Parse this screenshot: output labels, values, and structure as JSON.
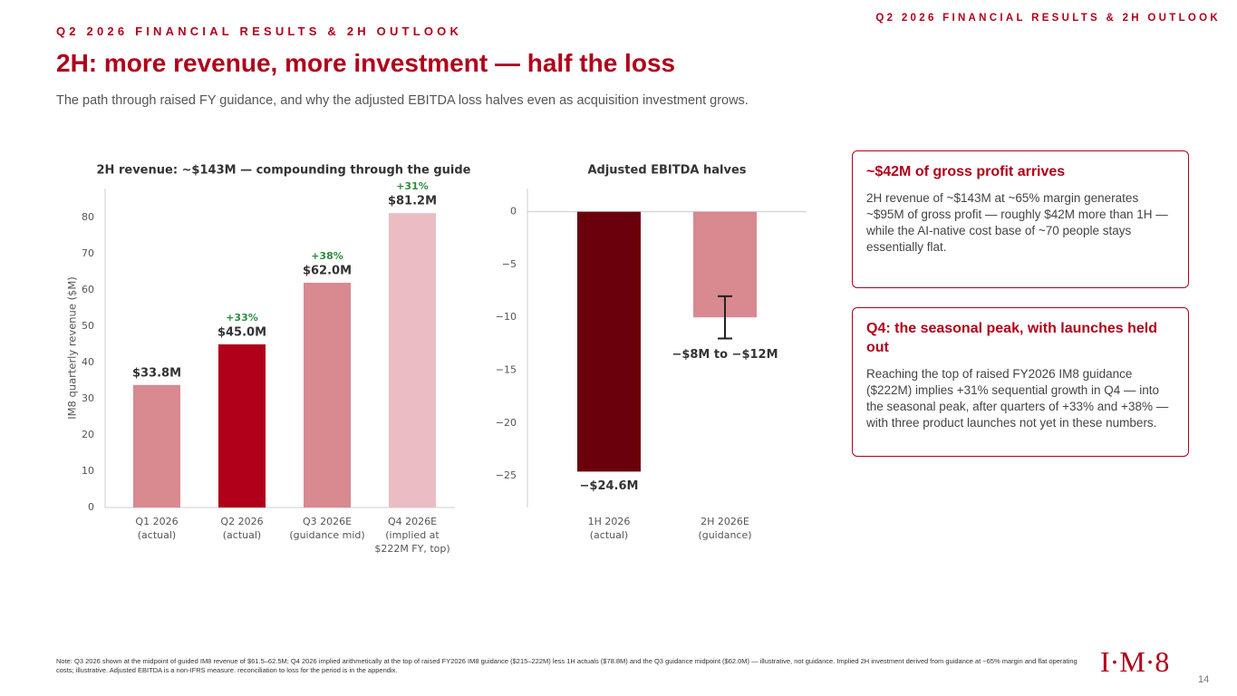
{
  "header": {
    "eyebrow": "Q2 2026 FINANCIAL RESULTS & 2H OUTLOOK",
    "title": "2H: more revenue, more investment — half the loss",
    "subtitle": "The path through raised FY guidance, and why the adjusted EBITDA loss halves even as acquisition investment grows."
  },
  "chart_data": [
    {
      "type": "bar",
      "title": "2H revenue: ~$143M — compounding through the guide",
      "y_label": "IM8 quarterly revenue ($M)",
      "categories": [
        "Q1 2026\n(actual)",
        "Q2 2026\n(actual)",
        "Q3 2026E\n(guidance mid)",
        "Q4 2026E\n(implied at\n$222M FY, top)"
      ],
      "values": [
        33.8,
        45.0,
        62.0,
        81.2
      ],
      "value_labels": [
        "$33.8M",
        "$45.0M",
        "$62.0M",
        "$81.2M"
      ],
      "growth_labels": [
        null,
        "+33%",
        "+38%",
        "+31%"
      ],
      "growth_color": "#2e8b3e",
      "colors": [
        "#d98990",
        "#b0001a",
        "#d98990",
        "#ebbcc3"
      ],
      "ylim": [
        0,
        88
      ],
      "yticks": [
        0,
        10,
        20,
        30,
        40,
        50,
        60,
        70,
        80
      ]
    },
    {
      "type": "bar",
      "title": "Adjusted EBITDA halves",
      "categories": [
        "1H 2026\n(actual)",
        "2H 2026E\n(guidance)"
      ],
      "values": [
        -24.6,
        -10
      ],
      "errors": [
        null,
        2
      ],
      "value_labels": [
        "−$24.6M",
        "−$8M to −$12M"
      ],
      "colors": [
        "#6b000d",
        "#d98990"
      ],
      "ylim": [
        -28,
        2.2
      ],
      "yticks": [
        {
          "value": -25,
          "label": "−25"
        },
        {
          "value": -20,
          "label": "−20"
        },
        {
          "value": -15,
          "label": "−15"
        },
        {
          "value": -10,
          "label": "−10"
        },
        {
          "value": -5,
          "label": "−5"
        },
        0
      ]
    }
  ],
  "cards": [
    {
      "title": "~$42M of gross profit arrives",
      "body": "2H revenue of ~$143M at ~65% margin generates ~$95M of gross profit — roughly $42M more than 1H — while the AI-native cost base of ~70 people stays essentially flat."
    },
    {
      "title": "Q4: the seasonal peak, with launches held out",
      "body": "Reaching the top of raised FY2026 IM8 guidance ($222M) implies +31% sequential growth in Q4 — into the seasonal peak, after quarters of +33% and +38% — with three product launches not yet in these numbers."
    }
  ],
  "footer": {
    "note": "Note: Q3 2026 shown at the midpoint of guided IM8 revenue of $61.5–62.5M; Q4 2026 implied arithmetically at the top of raised FY2026 IM8 guidance ($215–222M) less 1H actuals ($78.8M) and the Q3 guidance midpoint ($62.0M) — illustrative, not guidance. Implied 2H investment derived from guidance at ~65% margin and flat operating costs; illustrative. Adjusted EBITDA is a non-IFRS measure. reconciliation to loss for the period is in the appendix.",
    "logo": "I·M·8",
    "page": "14"
  }
}
